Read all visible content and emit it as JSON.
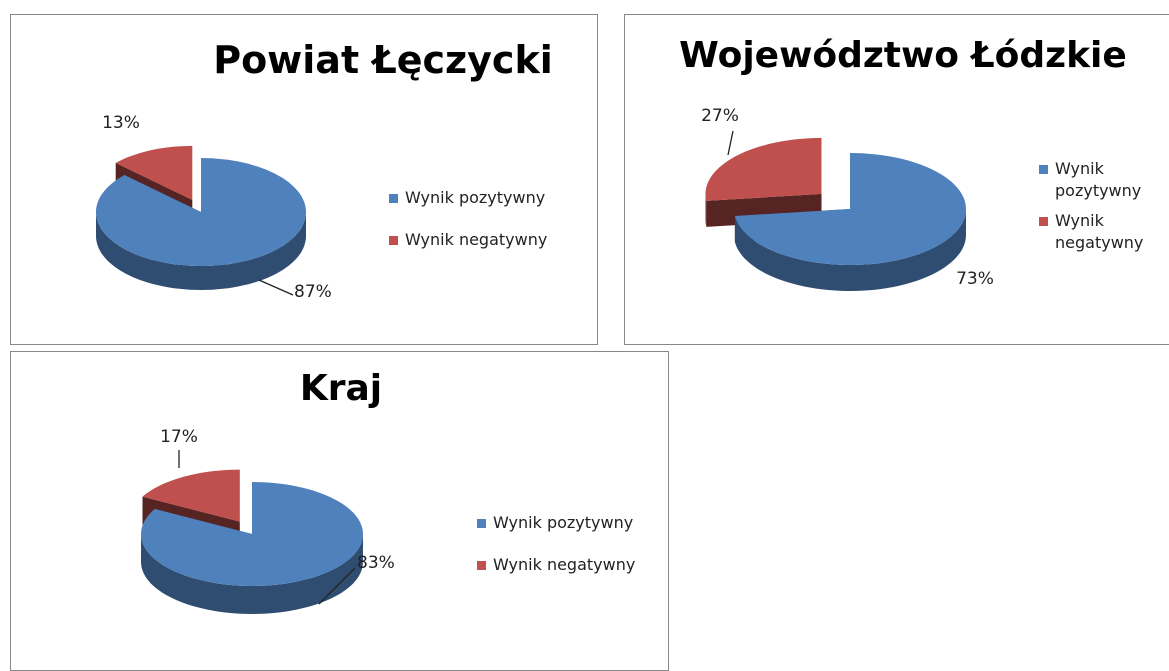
{
  "chart_data": [
    {
      "type": "pie",
      "title": "Powiat Łęczycki",
      "categories": [
        "Wynik pozytywny",
        "Wynik negatywny"
      ],
      "values": [
        87,
        13
      ],
      "value_labels": [
        "87%",
        "13%"
      ],
      "colors": [
        "#4f81bd",
        "#c0504d"
      ],
      "legend": "right"
    },
    {
      "type": "pie",
      "title": "Województwo Łódzkie",
      "categories": [
        "Wynik pozytywny",
        "Wynik negatywny"
      ],
      "values": [
        73,
        27
      ],
      "value_labels": [
        "73%",
        "27%"
      ],
      "colors": [
        "#4f81bd",
        "#c0504d"
      ],
      "legend": "right"
    },
    {
      "type": "pie",
      "title": "Kraj",
      "categories": [
        "Wynik pozytywny",
        "Wynik negatywny"
      ],
      "values": [
        83,
        17
      ],
      "value_labels": [
        "83%",
        "17%"
      ],
      "colors": [
        "#4f81bd",
        "#c0504d"
      ],
      "legend": "right"
    }
  ]
}
